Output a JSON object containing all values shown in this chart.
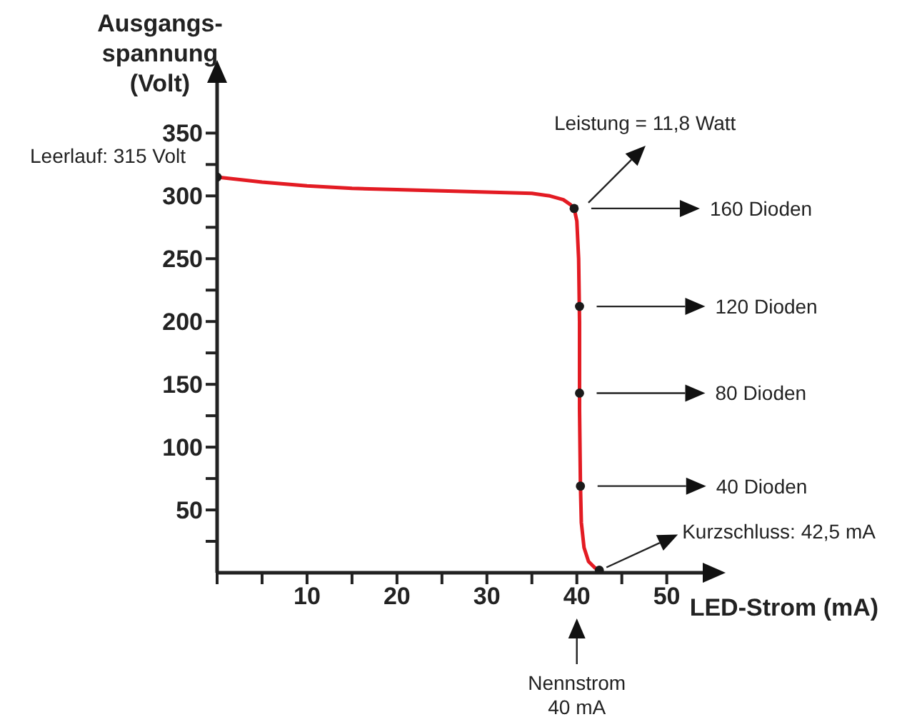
{
  "chart_data": {
    "type": "line",
    "xlabel": "LED-Strom (mA)",
    "ylabel": "Ausgangs-\nspannung\n(Volt)",
    "xlim": [
      0,
      54
    ],
    "ylim": [
      0,
      390
    ],
    "xticks": [
      {
        "value": 0,
        "label": null
      },
      {
        "value": 5,
        "label": null
      },
      10,
      {
        "value": 15,
        "label": null
      },
      20,
      {
        "value": 25,
        "label": null
      },
      30,
      {
        "value": 35,
        "label": null
      },
      40,
      {
        "value": 45,
        "label": null
      },
      50
    ],
    "yticks": [
      {
        "value": 25,
        "label": null
      },
      50,
      {
        "value": 75,
        "label": null
      },
      100,
      {
        "value": 125,
        "label": null
      },
      150,
      {
        "value": 175,
        "label": null
      },
      200,
      {
        "value": 225,
        "label": null
      },
      250,
      {
        "value": 275,
        "label": null
      },
      300,
      {
        "value": 325,
        "label": null
      },
      350
    ],
    "series": [
      {
        "color": "#e31b23",
        "x": [
          0,
          5,
          10,
          15,
          20,
          25,
          30,
          35,
          37,
          38.5,
          39.3,
          39.7,
          40,
          40.2,
          40.3,
          40.3,
          40.4,
          40.5,
          40.8,
          41.3,
          42,
          42.5
        ],
        "values": [
          315,
          311,
          308,
          306,
          305,
          304,
          303,
          302,
          300,
          297,
          293,
          290,
          280,
          250,
          200,
          130,
          70,
          40,
          20,
          9,
          4,
          2
        ]
      },
      {
        "type": "scatter",
        "color": "#1a1a1a",
        "x": [
          0,
          39.7,
          40.3,
          40.3,
          40.4,
          42.5
        ],
        "values": [
          315,
          290,
          212,
          143,
          69,
          2
        ]
      }
    ],
    "annotations": [
      "Leerlauf: 315 Volt",
      "Leistung = 11,8 Watt",
      "160 Dioden",
      "120 Dioden",
      "80 Dioden",
      "40 Dioden",
      {
        "text": "Kurzschluss: 42,5 mA",
        "x": 42.5,
        "y": 2
      },
      "Nennstrom\n40 mA"
    ]
  }
}
